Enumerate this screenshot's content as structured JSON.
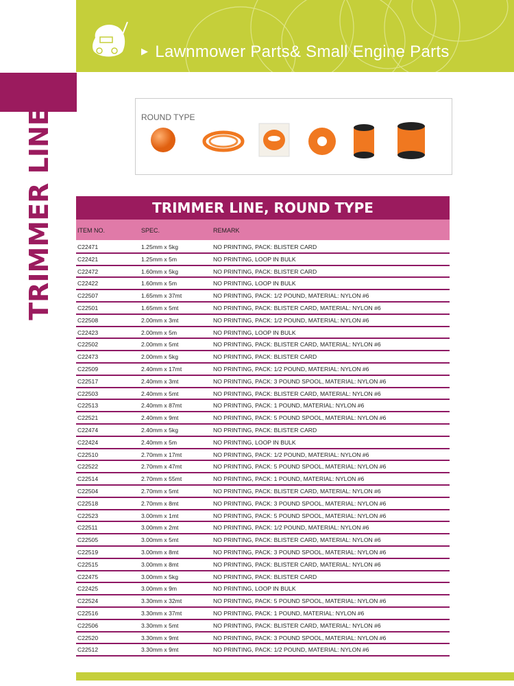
{
  "header": {
    "title": "Lawnmower Parts& Small Engine Parts"
  },
  "side_label": "TRIMMER LINE",
  "gallery": {
    "label": "ROUND TYPE"
  },
  "table": {
    "title": "TRIMMER LINE, ROUND TYPE",
    "columns": [
      "ITEM NO.",
      "SPEC.",
      "REMARK"
    ],
    "rows": [
      [
        "C22471",
        "1.25mm x 5kg",
        "NO PRINTING, PACK: BLISTER CARD"
      ],
      [
        "C22421",
        "1.25mm x 5m",
        "NO PRINTING, LOOP IN BULK"
      ],
      [
        "C22472",
        "1.60mm x 5kg",
        "NO PRINTING, PACK: BLISTER CARD"
      ],
      [
        "C22422",
        "1.60mm x 5m",
        "NO PRINTING, LOOP IN BULK"
      ],
      [
        "C22507",
        "1.65mm x 37mt",
        "NO PRINTING, PACK: 1/2 POUND, MATERIAL: NYLON #6"
      ],
      [
        "C22501",
        "1.65mm x 5mt",
        "NO PRINTING, PACK: BLISTER CARD, MATERIAL: NYLON #6"
      ],
      [
        "C22508",
        "2.00mm x 3mt",
        "NO PRINTING, PACK: 1/2 POUND, MATERIAL: NYLON #6"
      ],
      [
        "C22423",
        "2.00mm x 5m",
        "NO PRINTING, LOOP IN BULK"
      ],
      [
        "C22502",
        "2.00mm x 5mt",
        "NO PRINTING, PACK: BLISTER CARD,  MATERIAL: NYLON #6"
      ],
      [
        "C22473",
        "2.00mm x 5kg",
        "NO PRINTING, PACK: BLISTER CARD"
      ],
      [
        "C22509",
        "2.40mm x 17mt",
        "NO PRINTING, PACK: 1/2 POUND, MATERIAL: NYLON #6"
      ],
      [
        "C22517",
        "2.40mm x 3mt",
        "NO PRINTING, PACK: 3 POUND SPOOL, MATERIAL: NYLON #6"
      ],
      [
        "C22503",
        "2.40mm x 5mt",
        "NO PRINTING, PACK: BLISTER CARD, MATERIAL: NYLON #6"
      ],
      [
        "C22513",
        "2.40mm x 87mt",
        "NO PRINTING, PACK: 1 POUND, MATERIAL: NYLON #6"
      ],
      [
        "C22521",
        "2.40mm x 9mt",
        "NO PRINTING, PACK: 5 POUND SPOOL, MATERIAL: NYLON #6"
      ],
      [
        "C22474",
        "2.40mm x 5kg",
        "NO PRINTING, PACK: BLISTER CARD"
      ],
      [
        "C22424",
        "2.40mm x 5m",
        "NO PRINTING, LOOP IN BULK"
      ],
      [
        "C22510",
        "2.70mm x 17mt",
        "NO PRINTING, PACK: 1/2 POUND, MATERIAL: NYLON #6"
      ],
      [
        "C22522",
        "2.70mm x 47mt",
        "NO PRINTING, PACK: 5 POUND SPOOL, MATERIAL: NYLON #6"
      ],
      [
        "C22514",
        "2.70mm x 55mt",
        "NO PRINTING, PACK: 1 POUND, MATERIAL: NYLON #6"
      ],
      [
        "C22504",
        "2.70mm x 5mt",
        "NO PRINTING, PACK: BLISTER CARD, MATERIAL: NYLON #6"
      ],
      [
        "C22518",
        "2.70mm x 8mt",
        "NO PRINTING, PACK: 3 POUND SPOOL, MATERIAL: NYLON #6"
      ],
      [
        "C22523",
        "3.00mm x 1mt",
        "NO PRINTING, PACK: 5 POUND SPOOL, MATERIAL: NYLON #6"
      ],
      [
        "C22511",
        "3.00mm x 2mt",
        "NO PRINTING, PACK: 1/2 POUND, MATERIAL: NYLON #6"
      ],
      [
        "C22505",
        "3.00mm x 5mt",
        "NO PRINTING, PACK: BLISTER CARD, MATERIAL: NYLON #6"
      ],
      [
        "C22519",
        "3.00mm x 8mt",
        "NO PRINTING, PACK: 3 POUND SPOOL, MATERIAL: NYLON #6"
      ],
      [
        "C22515",
        "3.00mm x 8mt",
        "NO PRINTING, PACK: BLISTER CARD,  MATERIAL: NYLON #6"
      ],
      [
        "C22475",
        "3.00mm x 5kg",
        "NO PRINTING, PACK: BLISTER CARD"
      ],
      [
        "C22425",
        "3.00mm x 9m",
        "NO PRINTING, LOOP IN BULK"
      ],
      [
        "C22524",
        "3.30mm x 32mt",
        "NO PRINTING, PACK: 5 POUND SPOOL, MATERIAL: NYLON #6"
      ],
      [
        "C22516",
        "3.30mm x 37mt",
        "NO PRINTING, PACK: 1 POUND, MATERIAL: NYLON #6"
      ],
      [
        "C22506",
        "3.30mm x 5mt",
        "NO PRINTING, PACK: BLISTER CARD, MATERIAL: NYLON #6"
      ],
      [
        "C22520",
        "3.30mm x 9mt",
        "NO PRINTING, PACK: 3 POUND SPOOL, MATERIAL: NYLON #6"
      ],
      [
        "C22512",
        "3.30mm x 9mt",
        "NO PRINTING, PACK: 1/2 POUND, MATERIAL: NYLON #6"
      ]
    ]
  },
  "colors": {
    "green": "#c5cf3a",
    "purple": "#9b1b5e",
    "pink": "#e07aa8",
    "orange": "#f07820"
  }
}
